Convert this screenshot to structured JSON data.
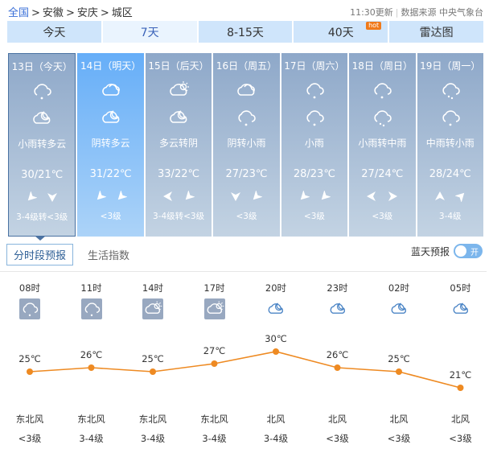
{
  "breadcrumb": {
    "items": [
      "全国",
      "安徽",
      "安庆",
      "城区"
    ],
    "separator": ">"
  },
  "meta": {
    "updated": "11:30更新",
    "source_label": "数据来源",
    "source": "中央气象台"
  },
  "tabs": [
    {
      "label": "今天"
    },
    {
      "label": "7天",
      "active": true
    },
    {
      "label": "8-15天"
    },
    {
      "label": "40天",
      "badge": "hot"
    },
    {
      "label": "雷达图"
    }
  ],
  "days": [
    {
      "date": "13日（今天）",
      "icons": [
        "cloud-rain-icon",
        "cloud-moon-icon"
      ],
      "desc": "小雨转多云",
      "temp": "30/21℃",
      "wind_dirs": [
        "northeast",
        "north"
      ],
      "level": "3-4级转<3级",
      "selected": true
    },
    {
      "date": "14日（明天）",
      "icons": [
        "overcast-icon",
        "cloud-moon-icon"
      ],
      "desc": "阴转多云",
      "temp": "31/22℃",
      "wind_dirs": [
        "northeast",
        "northeast"
      ],
      "level": "<3级",
      "tomorrow": true
    },
    {
      "date": "15日（后天）",
      "icons": [
        "cloud-sun-icon",
        "cloud-moon-icon"
      ],
      "desc": "多云转阴",
      "temp": "33/22℃",
      "wind_dirs": [
        "east",
        "northeast"
      ],
      "level": "3-4级转<3级"
    },
    {
      "date": "16日（周五）",
      "icons": [
        "overcast-icon",
        "cloud-rain-icon"
      ],
      "desc": "阴转小雨",
      "temp": "27/23℃",
      "wind_dirs": [
        "north",
        "northeast"
      ],
      "level": "<3级"
    },
    {
      "date": "17日（周六）",
      "icons": [
        "cloud-rain-icon",
        "cloud-rain-icon"
      ],
      "desc": "小雨",
      "temp": "28/23℃",
      "wind_dirs": [
        "northeast",
        "northeast"
      ],
      "level": "<3级"
    },
    {
      "date": "18日（周日）",
      "icons": [
        "cloud-rain-icon",
        "cloud-rain-heavy-icon"
      ],
      "desc": "小雨转中雨",
      "temp": "27/24℃",
      "wind_dirs": [
        "east",
        "west"
      ],
      "level": "<3级"
    },
    {
      "date": "19日（周一）",
      "icons": [
        "cloud-rain-heavy-icon",
        "cloud-rain-icon"
      ],
      "desc": "中雨转小雨",
      "temp": "28/24℃",
      "wind_dirs": [
        "south",
        "southwest"
      ],
      "level": "3-4级"
    }
  ],
  "subtabs": [
    {
      "label": "分时段预报",
      "active": true
    },
    {
      "label": "生活指数"
    }
  ],
  "bluesky": {
    "label": "蓝天预报",
    "toggle": "开",
    "on": true
  },
  "chart_data": {
    "type": "line",
    "x": [
      "08时",
      "11时",
      "14时",
      "17时",
      "20时",
      "23时",
      "02时",
      "05时"
    ],
    "values": [
      25,
      26,
      25,
      27,
      30,
      26,
      25,
      21
    ],
    "labels": [
      "25℃",
      "26℃",
      "25℃",
      "27℃",
      "30℃",
      "26℃",
      "25℃",
      "21℃"
    ],
    "icons": [
      "cloud-rain-icon",
      "cloud-rain-icon",
      "cloud-sun-icon",
      "cloud-sun-icon",
      "cloud-moon-icon",
      "cloud-moon-icon",
      "cloud-moon-icon",
      "cloud-moon-icon"
    ],
    "wind": [
      "东北风",
      "东北风",
      "东北风",
      "东北风",
      "北风",
      "北风",
      "北风",
      "北风"
    ],
    "wind_level": [
      "<3级",
      "3-4级",
      "3-4级",
      "3-4级",
      "3-4级",
      "<3级",
      "<3级",
      "<3级"
    ],
    "color": "#ee8a22"
  }
}
